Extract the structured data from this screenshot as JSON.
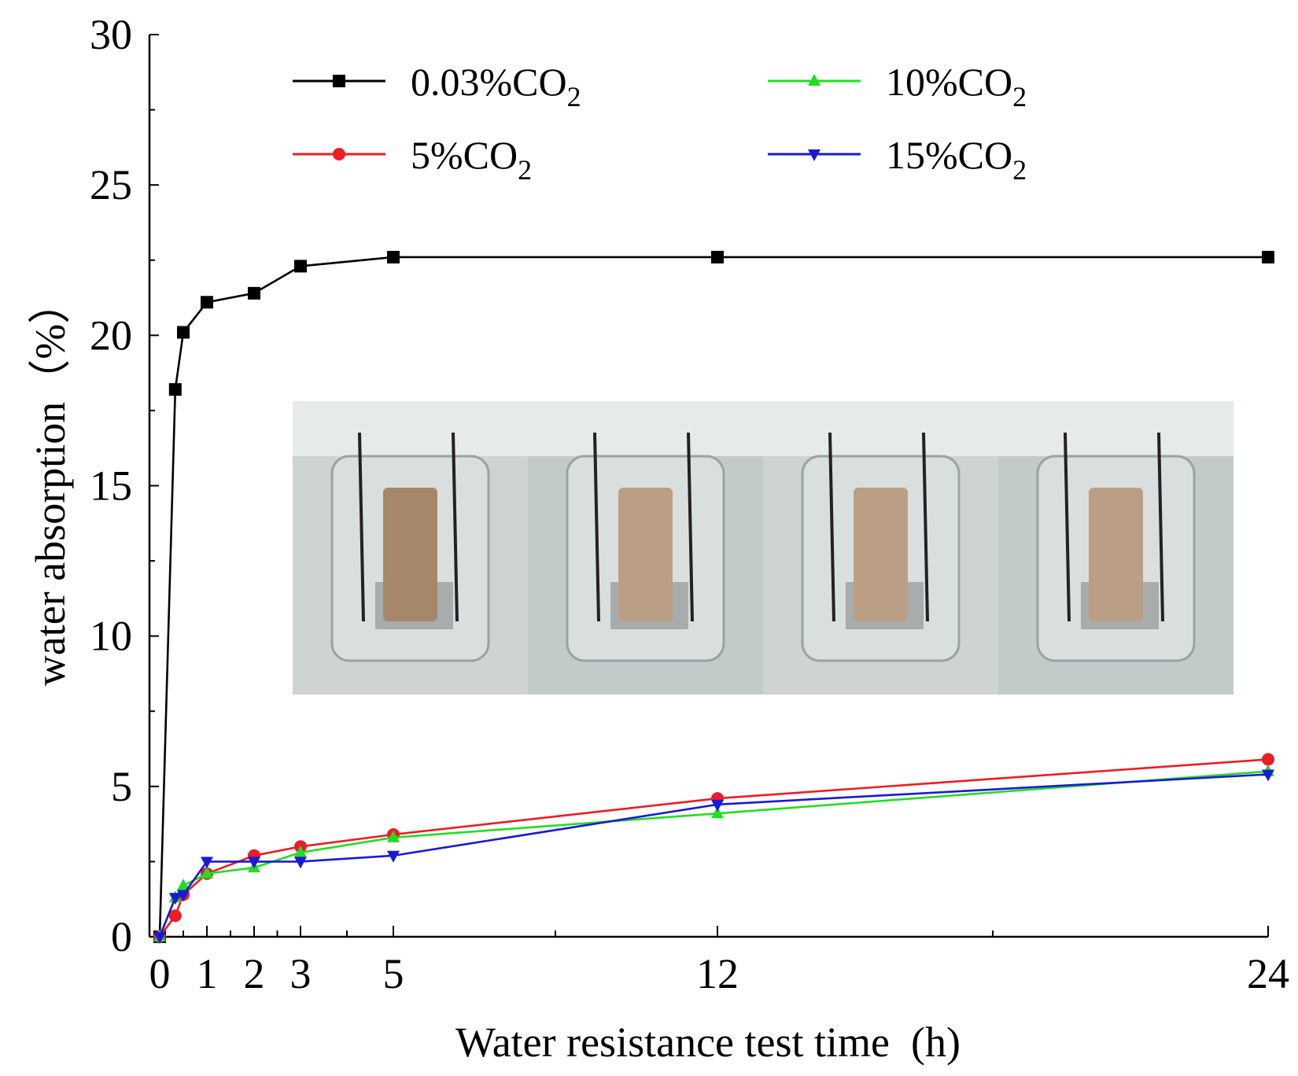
{
  "chart_data": {
    "type": "line",
    "title": "",
    "xlabel": "Water resistance test time  (h)",
    "ylabel": "water absorption（%）",
    "x_ticks": [
      0,
      1,
      2,
      3,
      5,
      12,
      24
    ],
    "x_tick_labels": [
      "0",
      "1",
      "2",
      "3",
      "5",
      "12",
      "24"
    ],
    "x_minor_ticks": [
      0.5,
      1.5,
      2.5,
      4,
      8.5,
      18
    ],
    "xlim": [
      -0.2,
      24
    ],
    "y_ticks": [
      0,
      5,
      10,
      15,
      20,
      25,
      30
    ],
    "y_tick_labels": [
      "0",
      "5",
      "10",
      "15",
      "20",
      "25",
      "30"
    ],
    "ylim": [
      0,
      30
    ],
    "legend_position": "top",
    "inset": "photograph of four cylindrical specimens immersed in water beakers",
    "series": [
      {
        "name": "0.03%CO2",
        "label_main": "0.03%CO",
        "label_sub": "2",
        "color": "#000000",
        "marker": "square",
        "x": [
          0,
          0.33,
          0.5,
          1,
          2,
          3,
          5,
          12,
          24
        ],
        "values": [
          0,
          18.2,
          20.1,
          21.1,
          21.4,
          22.3,
          22.6,
          22.6,
          22.6
        ]
      },
      {
        "name": "5%CO2",
        "label_main": "5%CO",
        "label_sub": "2",
        "color": "#ee1c25",
        "marker": "circle",
        "x": [
          0,
          0.33,
          0.5,
          1,
          2,
          3,
          5,
          12,
          24
        ],
        "values": [
          0,
          0.7,
          1.4,
          2.1,
          2.7,
          3.0,
          3.4,
          4.6,
          5.9
        ]
      },
      {
        "name": "10%CO2",
        "label_main": "10%CO",
        "label_sub": "2",
        "color": "#22dd22",
        "marker": "triangle-up",
        "x": [
          0,
          0.33,
          0.5,
          1,
          2,
          3,
          5,
          12,
          24
        ],
        "values": [
          0,
          1.3,
          1.7,
          2.1,
          2.3,
          2.8,
          3.3,
          4.1,
          5.5
        ]
      },
      {
        "name": "15%CO2",
        "label_main": "15%CO",
        "label_sub": "2",
        "color": "#1a1ad6",
        "marker": "triangle-down",
        "x": [
          0,
          0.33,
          0.5,
          1,
          2,
          3,
          5,
          12,
          24
        ],
        "values": [
          0,
          1.3,
          1.4,
          2.5,
          2.5,
          2.5,
          2.7,
          4.4,
          5.4
        ]
      }
    ]
  }
}
